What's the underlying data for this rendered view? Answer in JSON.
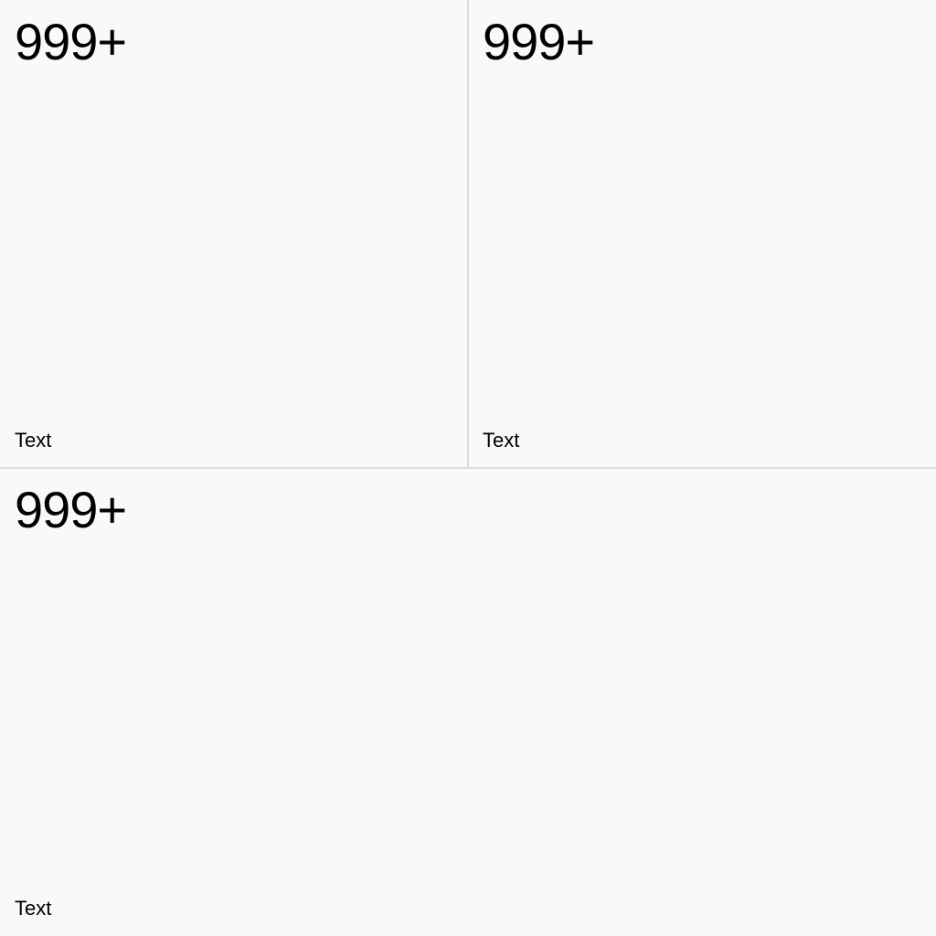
{
  "tiles": [
    {
      "value": "999+",
      "label": "Text"
    },
    {
      "value": "999+",
      "label": "Text"
    },
    {
      "value": "999+",
      "label": "Text"
    }
  ]
}
